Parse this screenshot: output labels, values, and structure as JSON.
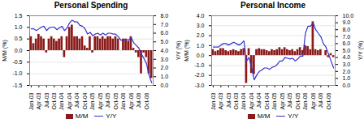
{
  "chart_data": [
    {
      "type": "bar",
      "title": "Personal Spending",
      "ylabel": "M/M (%)",
      "y2label": "Y/Y (%)",
      "categories": [
        "Jan-03",
        null,
        null,
        "Apr-03",
        null,
        null,
        "Jul-03",
        null,
        null,
        "Oct-03",
        null,
        null,
        "Jan-04",
        null,
        null,
        "Apr-04",
        null,
        null,
        "Jul-04",
        null,
        null,
        "Oct-04",
        null,
        null,
        "Jan-05",
        null,
        null,
        "Apr-05",
        null,
        null,
        "Jul-05",
        null,
        null,
        "Oct-05",
        null,
        null,
        "Jan-06",
        null,
        null,
        "Apr-06",
        null,
        null,
        "Jul-06",
        null,
        null,
        "Oct-06",
        null,
        null
      ],
      "series": [
        {
          "name": "M/M",
          "type": "bar",
          "color": "#8B1A1A",
          "values": [
            0.6,
            0.3,
            0.5,
            0.7,
            0.6,
            0.5,
            -0.1,
            0.5,
            0.6,
            0.5,
            0.4,
            0.5,
            0.6,
            -0.3,
            0.6,
            1.0,
            1.1,
            0.6,
            0.6,
            0.5,
            0.6,
            0.2,
            0.1,
            0.6,
            -0.1,
            0.6,
            0.6,
            0.5,
            0.6,
            0.5,
            0.6,
            0.6,
            0.5,
            0.6,
            0.5,
            0.0,
            0.5,
            0.5,
            0.4,
            0.6,
            0.1,
            -0.1,
            -0.3,
            -1.0,
            -0.1,
            -0.3,
            -1.0,
            -1.2
          ]
        },
        {
          "name": "Y/Y",
          "type": "line",
          "axis": "y2",
          "color": "#3333CC",
          "values": [
            6.5,
            6.5,
            6.3,
            6.5,
            6.7,
            6.8,
            6.3,
            6.6,
            6.7,
            6.7,
            6.4,
            6.6,
            6.8,
            6.3,
            6.6,
            7.2,
            7.5,
            7.3,
            7.3,
            6.9,
            6.8,
            6.5,
            5.9,
            6.1,
            5.7,
            5.9,
            6.0,
            5.8,
            6.0,
            5.8,
            6.0,
            6.0,
            5.9,
            5.9,
            5.6,
            5.2,
            5.2,
            5.3,
            5.2,
            5.5,
            4.9,
            4.6,
            4.3,
            3.6,
            3.1,
            2.5,
            1.2,
            0.3
          ]
        }
      ],
      "ylim": [
        -1.5,
        1.5
      ],
      "yticks": [
        -1.5,
        {
          "value": -1.0,
          "label": "-1.0"
        },
        -0.5,
        {
          "value": 0.0,
          "label": "0.0"
        },
        0.5,
        {
          "value": 1.0,
          "label": "1.0"
        },
        1.5
      ],
      "y2lim": [
        0.0,
        8.0
      ],
      "y2ticks": [
        {
          "value": 0.0,
          "label": "0.0"
        },
        {
          "value": 1.0,
          "label": "1.0"
        },
        {
          "value": 2.0,
          "label": "2.0"
        },
        {
          "value": 3.0,
          "label": "3.0"
        },
        {
          "value": 4.0,
          "label": "4.0"
        },
        {
          "value": 5.0,
          "label": "5.0"
        },
        {
          "value": 6.0,
          "label": "6.0"
        },
        {
          "value": 7.0,
          "label": "7.0"
        },
        {
          "value": 8.0,
          "label": "8.0"
        }
      ],
      "grid": true,
      "legend": "bottom"
    },
    {
      "type": "bar",
      "title": "Personal Income",
      "ylabel": "M/M (%)",
      "y2label": "Y/Y (%)",
      "categories": [
        "Jan-03",
        null,
        null,
        "Apr-03",
        null,
        null,
        "Jul-03",
        null,
        null,
        "Oct-03",
        null,
        null,
        "Jan-04",
        null,
        null,
        "Apr-04",
        null,
        null,
        "Jul-04",
        null,
        null,
        "Oct-04",
        null,
        null,
        "Jan-05",
        null,
        null,
        "Apr-05",
        null,
        null,
        "Jul-05",
        null,
        null,
        "Oct-05",
        null,
        null,
        "Jan-06",
        null,
        null,
        "Apr-06",
        null,
        null,
        "Jul-06",
        null,
        null,
        "Oct-06",
        null,
        null
      ],
      "series": [
        {
          "name": "M/M",
          "type": "bar",
          "color": "#8B1A1A",
          "values": [
            0.6,
            0.4,
            0.5,
            0.7,
            0.7,
            0.5,
            0.4,
            0.5,
            0.6,
            0.5,
            0.4,
            0.6,
            0.7,
            -2.8,
            0.7,
            -1.8,
            -1.9,
            0.6,
            0.7,
            0.6,
            0.6,
            0.5,
            0.4,
            0.6,
            0.5,
            0.6,
            0.8,
            0.6,
            0.8,
            0.6,
            0.5,
            0.6,
            0.4,
            0.6,
            0.8,
            0.5,
            1.0,
            0.9,
            0.6,
            3.4,
            0.6,
            0.5,
            0.6,
            0.0,
            0.5,
            -0.2,
            0.2,
            -0.2
          ]
        },
        {
          "name": "Y/Y",
          "type": "line",
          "axis": "y2",
          "color": "#3333CC",
          "values": [
            5.5,
            5.5,
            5.5,
            5.8,
            6.0,
            6.0,
            5.8,
            6.0,
            6.2,
            6.0,
            5.8,
            6.0,
            6.4,
            3.5,
            4.0,
            2.5,
            0.8,
            1.5,
            2.0,
            2.2,
            2.5,
            2.5,
            2.3,
            2.6,
            2.7,
            3.0,
            3.5,
            3.5,
            4.0,
            3.9,
            3.8,
            3.9,
            3.5,
            3.8,
            4.2,
            4.2,
            7.5,
            8.5,
            8.5,
            9.0,
            8.0,
            7.5,
            7.0,
            6.0,
            5.5,
            4.5,
            3.5,
            2.5
          ]
        }
      ],
      "ylim": [
        -3.0,
        4.0
      ],
      "yticks": [
        {
          "value": -3.0,
          "label": "-3.0"
        },
        {
          "value": -2.0,
          "label": "-2.0"
        },
        {
          "value": -1.0,
          "label": "-1.0"
        },
        {
          "value": 0.0,
          "label": "0.0"
        },
        {
          "value": 1.0,
          "label": "1.0"
        },
        {
          "value": 2.0,
          "label": "2.0"
        },
        {
          "value": 3.0,
          "label": "3.0"
        },
        {
          "value": 4.0,
          "label": "4.0"
        }
      ],
      "y2lim": [
        0.0,
        10.0
      ],
      "y2ticks": [
        {
          "value": 0.0,
          "label": "0.0"
        },
        {
          "value": 1.0,
          "label": "1.0"
        },
        {
          "value": 2.0,
          "label": "2.0"
        },
        {
          "value": 3.0,
          "label": "3.0"
        },
        {
          "value": 4.0,
          "label": "4.0"
        },
        {
          "value": 5.0,
          "label": "5.0"
        },
        {
          "value": 6.0,
          "label": "6.0"
        },
        {
          "value": 7.0,
          "label": "7.0"
        },
        {
          "value": 8.0,
          "label": "8.0"
        },
        {
          "value": 9.0,
          "label": "9.0"
        },
        {
          "value": 10.0,
          "label": "10.0"
        }
      ],
      "grid": true,
      "legend": "bottom"
    }
  ]
}
